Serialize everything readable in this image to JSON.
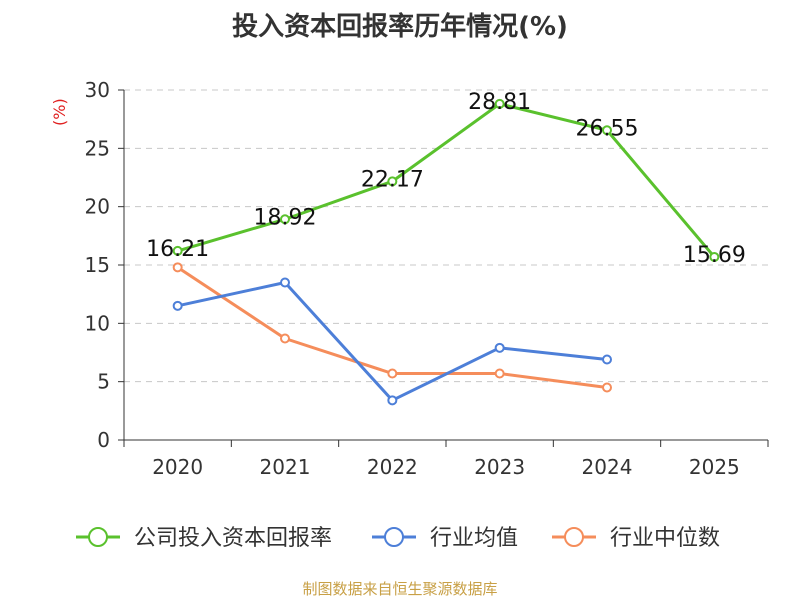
{
  "chart_data": {
    "type": "line",
    "title": "投入资本回报率历年情况(%)",
    "unit_label": "(%)",
    "categories": [
      "2020",
      "2021",
      "2022",
      "2023",
      "2024",
      "2025"
    ],
    "ylim": [
      0,
      30
    ],
    "yticks": [
      0,
      5,
      10,
      15,
      20,
      25,
      30
    ],
    "series": [
      {
        "name": "公司投入资本回报率",
        "color": "#5ac12d",
        "values": [
          16.21,
          18.92,
          22.17,
          28.81,
          26.55,
          15.69
        ],
        "labels": [
          "16.21",
          "18.92",
          "22.17",
          "28.81",
          "26.55",
          "15.69"
        ]
      },
      {
        "name": "行业均值",
        "color": "#4d7fd8",
        "values": [
          11.5,
          13.5,
          3.4,
          7.9,
          6.9,
          null
        ]
      },
      {
        "name": "行业中位数",
        "color": "#f58d5b",
        "values": [
          14.8,
          8.7,
          5.7,
          5.7,
          4.5,
          null
        ]
      }
    ],
    "source": "制图数据来自恒生聚源数据库"
  }
}
